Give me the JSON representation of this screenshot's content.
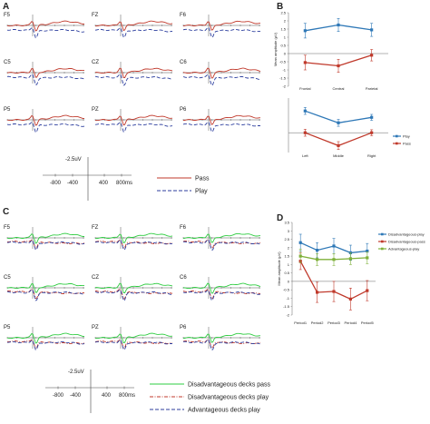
{
  "panels": {
    "A": "A",
    "B": "B",
    "C": "C",
    "D": "D"
  },
  "electrodes_top": [
    "F5",
    "FZ",
    "F6",
    "C5",
    "CZ",
    "C6",
    "P5",
    "PZ",
    "P6"
  ],
  "electrodes_bottom": [
    "F5",
    "FZ",
    "F6",
    "C5",
    "CZ",
    "C6",
    "P5",
    "PZ",
    "P6"
  ],
  "scale_top": {
    "amp_label": "-2.5uV",
    "ticks": [
      "-800",
      "-400",
      "400",
      "800ms"
    ]
  },
  "scale_bottom": {
    "amp_label": "-2.5uV",
    "ticks": [
      "-800",
      "-400",
      "400",
      "800ms"
    ]
  },
  "legend_top": [
    {
      "label": "Pass",
      "color": "#c0392b",
      "dash": "solid"
    },
    {
      "label": "Play",
      "color": "#2c3e9e",
      "dash": "dash"
    }
  ],
  "legend_bottom": [
    {
      "label": "Disadvantageous decks pass",
      "color": "#2ecc40",
      "dash": "solid"
    },
    {
      "label": "Disadvantageous decks play",
      "color": "#c0392b",
      "dash": "dashdot"
    },
    {
      "label": "Advantageous decks play",
      "color": "#2c3e9e",
      "dash": "dash"
    }
  ],
  "chart_data": [
    {
      "type": "line",
      "title": "B-top",
      "categories": [
        "Frontal",
        "Central",
        "Parietal"
      ],
      "ylabel": "Mean amplitude (μV)",
      "ylim": [
        -2,
        2.5
      ],
      "yticks": [
        "2.5",
        "2",
        "1.5",
        "1",
        "0.5",
        "0",
        "-0.5",
        "-1",
        "-1.5",
        "-2"
      ],
      "series": [
        {
          "name": "Play",
          "color": "#2e78b7",
          "values": [
            1.4,
            1.75,
            1.45
          ],
          "err": [
            0.45,
            0.4,
            0.4
          ]
        },
        {
          "name": "Pass",
          "color": "#c0392b",
          "values": [
            -0.55,
            -0.75,
            -0.1
          ],
          "err": [
            0.45,
            0.4,
            0.35
          ]
        }
      ]
    },
    {
      "type": "line",
      "title": "B-bottom",
      "categories": [
        "Left",
        "Middle",
        "Right"
      ],
      "ylim": [
        -2,
        3.5
      ],
      "series": [
        {
          "name": "Play",
          "color": "#2e78b7",
          "values": [
            2.2,
            1.0,
            1.55
          ],
          "err": [
            0.35,
            0.35,
            0.3
          ]
        },
        {
          "name": "Pass",
          "color": "#c0392b",
          "values": [
            0.0,
            -1.3,
            0.0
          ],
          "err": [
            0.35,
            0.4,
            0.3
          ]
        }
      ],
      "legend": [
        "Play",
        "Pass"
      ]
    },
    {
      "type": "line",
      "title": "D",
      "categories": [
        "Period1",
        "Period2",
        "Period3",
        "Period4",
        "Period5"
      ],
      "ylabel": "Mean amplitude (μV)",
      "ylim": [
        -2,
        3.5
      ],
      "yticks": [
        "3.5",
        "3",
        "2.5",
        "2",
        "1.5",
        "1",
        "0.5",
        "0",
        "-0.5",
        "-1",
        "-1.5",
        "-2"
      ],
      "series": [
        {
          "name": "Disadvantageous-play",
          "color": "#2e78b7",
          "values": [
            2.3,
            1.85,
            2.1,
            1.7,
            1.8
          ],
          "err": [
            0.5,
            0.45,
            0.45,
            0.45,
            0.45
          ]
        },
        {
          "name": "Disadvantageous-pass",
          "color": "#c0392b",
          "values": [
            1.2,
            -0.65,
            -0.6,
            -1.05,
            -0.55
          ],
          "err": [
            0.5,
            0.6,
            0.6,
            0.65,
            0.6
          ]
        },
        {
          "name": "Advantageous-play",
          "color": "#7fb03a",
          "values": [
            1.5,
            1.3,
            1.3,
            1.35,
            1.4
          ],
          "err": [
            0.4,
            0.35,
            0.35,
            0.35,
            0.35
          ]
        }
      ]
    }
  ]
}
